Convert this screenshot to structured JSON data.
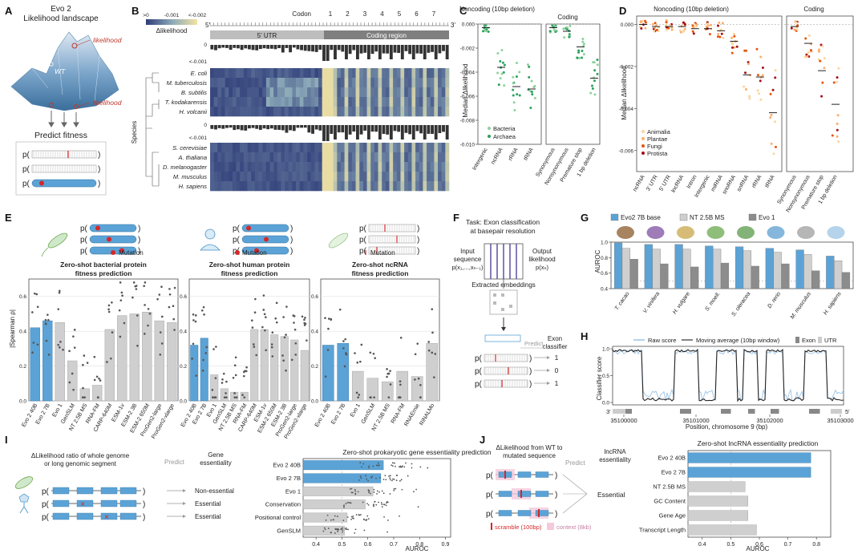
{
  "panel_labels": {
    "A": "A",
    "B": "B",
    "C": "C",
    "D": "D",
    "E": "E",
    "F": "F",
    "G": "G",
    "H": "H",
    "I": "I",
    "J": "J"
  },
  "panelA": {
    "title_line1": "Evo 2",
    "title_line2": "Likelihood landscape",
    "high_label": "likelihood",
    "low_label": "likelihood",
    "wt_label": "WT",
    "predict_title": "Predict fitness"
  },
  "panelB": {
    "codon_label": "Codon",
    "codon_numbers": [
      "1",
      "2",
      "3",
      "4",
      "5",
      "6",
      "7"
    ],
    "utr_label": "5' UTR",
    "coding_label": "Coding region",
    "five_prime": "5'",
    "three_prime": "3'",
    "legend_ticks": [
      ">0",
      "-0.001",
      "<-0.002"
    ],
    "legend_title": "Δlikelihood",
    "bar_axis_top": "0",
    "bar_axis_bottom": "<-0.001",
    "species_axis": "Species",
    "species_top": [
      "E. coli",
      "M. tuberculosis",
      "B. subtilis",
      "T. kodakarensis",
      "H. volcanii"
    ],
    "species_bottom": [
      "S. cerevisiae",
      "A. thaliana",
      "D. melanogaster",
      "M. musculus",
      "H. sapiens"
    ]
  },
  "panelC": {
    "noncoding_title": "Noncoding (10bp deletion)",
    "coding_title": "Coding",
    "ylabel": "Median Δlikelihood",
    "yticks": [
      "0.000",
      "-0.002",
      "-0.004",
      "-0.006",
      "-0.008",
      "-0.010"
    ],
    "categories": [
      "Intergenic",
      "ncRNA",
      "rRNA",
      "tRNA",
      "Synonymous",
      "Nonsynonymous",
      "Premature stop",
      "1 bp deletion"
    ],
    "legend": [
      "Bacteria",
      "Archaea"
    ]
  },
  "panelD": {
    "noncoding_title": "Noncoding (10bp deletion)",
    "coding_title": "Coding",
    "ylabel": "Median Δlikelihood",
    "yticks": [
      "0.000",
      "-0.002",
      "-0.004",
      "-0.006"
    ],
    "categories": [
      "ncRNA",
      "3' UTR",
      "5' UTR",
      "lncRNA",
      "Intron",
      "Intergenic",
      "miRNA",
      "snoRNA",
      "snRNA",
      "rRNA",
      "tRNA",
      "Synonymous",
      "Nonsynonymous",
      "Premature stop",
      "1 bp deletion"
    ],
    "legend": [
      "Animalia",
      "Plantae",
      "Fungi",
      "Protista"
    ]
  },
  "panelE": {
    "mutation_label": "Mutation",
    "mutation_label2": "Mutation",
    "ylabel": "|Spearman ρ|",
    "yticks": [
      "0.0",
      "0.2",
      "0.4",
      "0.6"
    ],
    "charts": [
      {
        "title1": "Zero-shot bacterial protein",
        "title2": "fitness prediction"
      },
      {
        "title1": "Zero-shot human protein",
        "title2": "fitness prediction"
      },
      {
        "title1": "Zero-shot ncRNA",
        "title2": "fitness prediction"
      }
    ]
  },
  "panelF": {
    "task1": "Task: Exon classification",
    "task2": "at basepair resolution",
    "input1": "Input",
    "input2": "sequence",
    "input3": "p(x₁,...,xₙ₋₁)",
    "output1": "Output",
    "output2": "likelihood",
    "output3": "p(xₙ)",
    "embed": "Extracted embeddings",
    "predict": "Predict",
    "exon1": "Exon",
    "exon2": "classifier",
    "outputs": [
      "1",
      "0",
      "1"
    ]
  },
  "panelG": {
    "legend": [
      "Evo2 7B base",
      "NT 2.5B MS",
      "Evo 1"
    ],
    "ylabel": "AUROC",
    "yticks": [
      "0.4",
      "0.6",
      "0.8",
      "1.0"
    ],
    "species": [
      "T. cacao",
      "V. vinifera",
      "H. vulgare",
      "S. moell.",
      "S. oleracea",
      "D. rerio",
      "M. musculus",
      "H. sapiens"
    ]
  },
  "panelH": {
    "legend": [
      "Raw score",
      "Moving average (10bp window)",
      "Exon",
      "UTR"
    ],
    "ylabel": "Classifier score",
    "yticks": [
      "0.0",
      "0.5",
      "1.0"
    ],
    "xticks": [
      "35100000",
      "35101000",
      "35102000",
      "35103000"
    ],
    "xlabel": "Position, chromosome 9 (bp)",
    "three": "3'",
    "five": "5'"
  },
  "panelI": {
    "desc1": "ΔLikelihood ratio of whole genome",
    "desc2": "or long genomic segment",
    "predict": "Predict",
    "gene1": "Gene",
    "gene2": "essentiality",
    "outcomes": [
      "Non-essential",
      "Essential",
      "Essential"
    ],
    "chart_title": "Zero-shot prokaryotic gene essentiality prediction",
    "xlabel": "AUROC",
    "xticks": [
      "0.4",
      "0.5",
      "0.6",
      "0.7",
      "0.8",
      "0.9"
    ]
  },
  "panelJ": {
    "desc1": "ΔLikelihood from WT to",
    "desc2": "mutated sequence",
    "predict": "Predict",
    "ess1": "lncRNA",
    "ess2": "essentiality",
    "essential": "Essential",
    "scramble": "scramble (100bp)",
    "context": "context (8kb)",
    "chart_title": "Zero-shot lncRNA essentiality prediction",
    "xlabel": "AUROC",
    "xticks": [
      "0.4",
      "0.5",
      "0.6",
      "0.7",
      "0.8"
    ]
  },
  "chart_data": [
    {
      "type": "bar",
      "title": "Zero-shot bacterial protein fitness prediction",
      "ylabel": "|Spearman ρ|",
      "ylim": [
        0,
        0.7
      ],
      "categories": [
        "Evo 2 40B",
        "Evo 2 7B",
        "Evo 1",
        "GenSLM",
        "NT 2.5B MS",
        "RNA-FM",
        "CARP-640M",
        "ESM-1v",
        "ESM-2 3B",
        "ESM-2 650M",
        "ProGen2-large",
        "ProGen2-xlarge"
      ],
      "values": [
        0.42,
        0.46,
        0.45,
        0.23,
        0.07,
        0.09,
        0.41,
        0.49,
        0.5,
        0.51,
        0.46,
        0.45
      ]
    },
    {
      "type": "bar",
      "title": "Zero-shot human protein fitness prediction",
      "ylabel": "|Spearman ρ|",
      "ylim": [
        0,
        0.7
      ],
      "categories": [
        "Evo 2 40B",
        "Evo 2 7B",
        "Evo 1",
        "GenSLM",
        "NT 2.5B MS",
        "RNA-FM",
        "CARP-640M",
        "ESM-1v",
        "ESM-2 650M",
        "ESM-2 3B",
        "ProGen2-large",
        "ProGen2-xlarge"
      ],
      "values": [
        0.32,
        0.36,
        0.15,
        0.07,
        0.05,
        0.05,
        0.41,
        0.41,
        0.38,
        0.37,
        0.35,
        0.29
      ]
    },
    {
      "type": "bar",
      "title": "Zero-shot ncRNA fitness prediction",
      "ylabel": "|Spearman ρ|",
      "ylim": [
        0,
        0.7
      ],
      "categories": [
        "Evo 2 40B",
        "Evo 2 7B",
        "Evo 1",
        "GenSLM",
        "NT 2.5B MS",
        "RNA-FM",
        "RNAErnie",
        "RiNALMo"
      ],
      "values": [
        0.32,
        0.33,
        0.17,
        0.13,
        0.11,
        0.17,
        0.14,
        0.33
      ]
    },
    {
      "type": "bar",
      "title": "",
      "ylabel": "AUROC",
      "ylim": [
        0.4,
        1.0
      ],
      "categories": [
        "T. cacao",
        "V. vinifera",
        "H. vulgare",
        "S. moell.",
        "S. oleracea",
        "D. rerio",
        "M. musculus",
        "H. sapiens"
      ],
      "series": [
        {
          "name": "Evo2 7B base",
          "values": [
            0.99,
            0.97,
            0.97,
            0.95,
            0.94,
            0.92,
            0.9,
            0.82
          ]
        },
        {
          "name": "NT 2.5B MS",
          "values": [
            0.92,
            0.91,
            0.91,
            0.91,
            0.89,
            0.87,
            0.84,
            0.76
          ]
        },
        {
          "name": "Evo 1",
          "values": [
            0.78,
            0.72,
            0.68,
            0.73,
            0.69,
            0.72,
            0.63,
            0.61
          ]
        }
      ]
    },
    {
      "type": "bar",
      "title": "Zero-shot prokaryotic gene essentiality prediction",
      "xlabel": "AUROC",
      "xlim": [
        0.35,
        0.92
      ],
      "categories": [
        "Evo 2 40B",
        "Evo 2 7B",
        "Evo 1",
        "Conservation",
        "Positional control",
        "GenSLM"
      ],
      "values": [
        0.66,
        0.65,
        0.62,
        0.59,
        0.52,
        0.51
      ]
    },
    {
      "type": "bar",
      "title": "Zero-shot lncRNA essentiality prediction",
      "xlabel": "AUROC",
      "xlim": [
        0.35,
        0.85
      ],
      "categories": [
        "Evo 2 40B",
        "Evo 2 7B",
        "NT 2.5B MS",
        "GC Content",
        "Gene Age",
        "Transcript Length"
      ],
      "values": [
        0.78,
        0.78,
        0.55,
        0.56,
        0.56,
        0.59
      ]
    }
  ]
}
